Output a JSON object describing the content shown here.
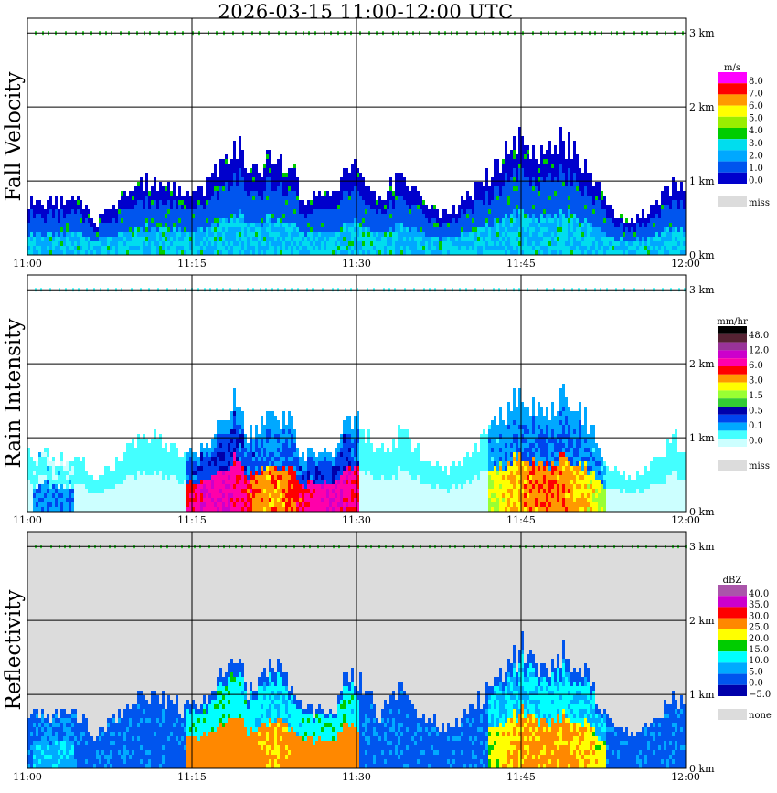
{
  "title": "2026-03-15  11:00-12:00 UTC",
  "chart_data": [
    {
      "type": "heatmap",
      "ylabel": "Fall Velocity",
      "x_ticks": [
        "11:00",
        "11:15",
        "11:30",
        "11:45",
        "12:00"
      ],
      "y_ticks": [
        "0 km",
        "1 km",
        "2 km",
        "3 km"
      ],
      "xlim": [
        "11:00",
        "12:00"
      ],
      "ylim_km": [
        0,
        3.2
      ],
      "grid": true,
      "background": "#ffffff",
      "legend": {
        "unit": "m/s",
        "colors": [
          "#0000cc",
          "#0055ee",
          "#00a8ff",
          "#00ddee",
          "#00cc00",
          "#99ee00",
          "#ffff00",
          "#ff9900",
          "#ff0000",
          "#ff00ff"
        ],
        "labels": [
          "8.0",
          "7.0",
          "6.0",
          "5.0",
          "4.0",
          "3.0",
          "2.0",
          "1.0",
          "0.0"
        ],
        "miss_label": "miss",
        "miss_color": "#dcdcdc"
      }
    },
    {
      "type": "heatmap",
      "ylabel": "Rain Intensity",
      "x_ticks": [
        "11:00",
        "11:15",
        "11:30",
        "11:45",
        "12:00"
      ],
      "y_ticks": [
        "0 km",
        "1 km",
        "2 km",
        "3 km"
      ],
      "xlim": [
        "11:00",
        "12:00"
      ],
      "ylim_km": [
        0,
        3.2
      ],
      "grid": true,
      "background": "#ffffff",
      "legend": {
        "unit": "mm/hr",
        "colors": [
          "#ccffff",
          "#44ffff",
          "#00a8ff",
          "#0044ee",
          "#0000aa",
          "#33cc33",
          "#99ff33",
          "#ffff00",
          "#ff9900",
          "#ff0000",
          "#ff00aa",
          "#cc00cc",
          "#993399",
          "#552233",
          "#000000"
        ],
        "labels": [
          "48.0",
          "12.0",
          "6.0",
          "3.0",
          "1.5",
          "0.5",
          "0.1",
          "0.0"
        ],
        "miss_label": "miss",
        "miss_color": "#dcdcdc"
      }
    },
    {
      "type": "heatmap",
      "ylabel": "Reflectivity",
      "x_ticks": [
        "11:00",
        "11:15",
        "11:30",
        "11:45",
        "12:00"
      ],
      "y_ticks": [
        "0 km",
        "1 km",
        "2 km",
        "3 km"
      ],
      "xlim": [
        "11:00",
        "12:00"
      ],
      "ylim_km": [
        0,
        3.2
      ],
      "grid": true,
      "background": "#dcdcdc",
      "legend": {
        "unit": "dBZ",
        "colors": [
          "#0000aa",
          "#0055ee",
          "#00aaff",
          "#00ffff",
          "#00cc00",
          "#ffff00",
          "#ff8800",
          "#ff0000",
          "#cc00cc",
          "#aa55aa"
        ],
        "labels": [
          "40.0",
          "35.0",
          "30.0",
          "25.0",
          "20.0",
          "15.0",
          "10.0",
          "5.0",
          "0.0",
          "−5.0"
        ],
        "miss_label": "none",
        "miss_color": "#dcdcdc"
      }
    }
  ]
}
